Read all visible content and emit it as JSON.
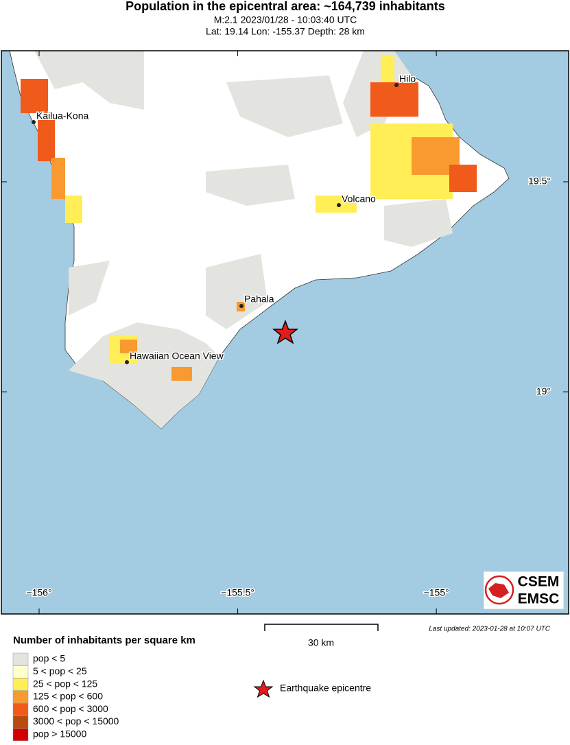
{
  "header": {
    "title": "Population in the epicentral area: ~164,739 inhabitants",
    "line1": "M:2.1 2023/01/28 - 10:03:40 UTC",
    "line2": "Lat: 19.14 Lon: -155.37 Depth: 28 km"
  },
  "map": {
    "lonlim": [
      -156.095,
      -154.667
    ],
    "latlim": [
      18.471,
      19.812
    ],
    "lon_ticks": [
      {
        "value": -156,
        "label": "−156°"
      },
      {
        "value": -155.5,
        "label": "−155.5°"
      },
      {
        "value": -155,
        "label": "−155°"
      }
    ],
    "lat_ticks": [
      {
        "value": 19.5,
        "label": "19.5°"
      },
      {
        "value": 19,
        "label": "19°"
      }
    ],
    "places": [
      "Hilo",
      "Kailua-Kona",
      "Volcano",
      "Pahala",
      "Hawaiian Ocean View"
    ],
    "scale_label": "30 km",
    "logo": [
      "CSEM",
      "EMSC"
    ]
  },
  "footer": {
    "updated": "Last updated: 2023-01-28 at 10:07 UTC"
  },
  "legend": {
    "title": "Number of inhabitants per square km",
    "items": [
      {
        "label": "pop < 5",
        "color": "#e3e3df"
      },
      {
        "label": "5 < pop < 25",
        "color": "#ffffcc"
      },
      {
        "label": "25 < pop < 125",
        "color": "#ffee55"
      },
      {
        "label": "125 < pop < 600",
        "color": "#f99a30"
      },
      {
        "label": "600 < pop < 3000",
        "color": "#f05a1a"
      },
      {
        "label": "3000 < pop < 15000",
        "color": "#b84a10"
      },
      {
        "label": "pop > 15000",
        "color": "#d40000"
      }
    ],
    "epicentre": "Earthquake epicentre"
  }
}
